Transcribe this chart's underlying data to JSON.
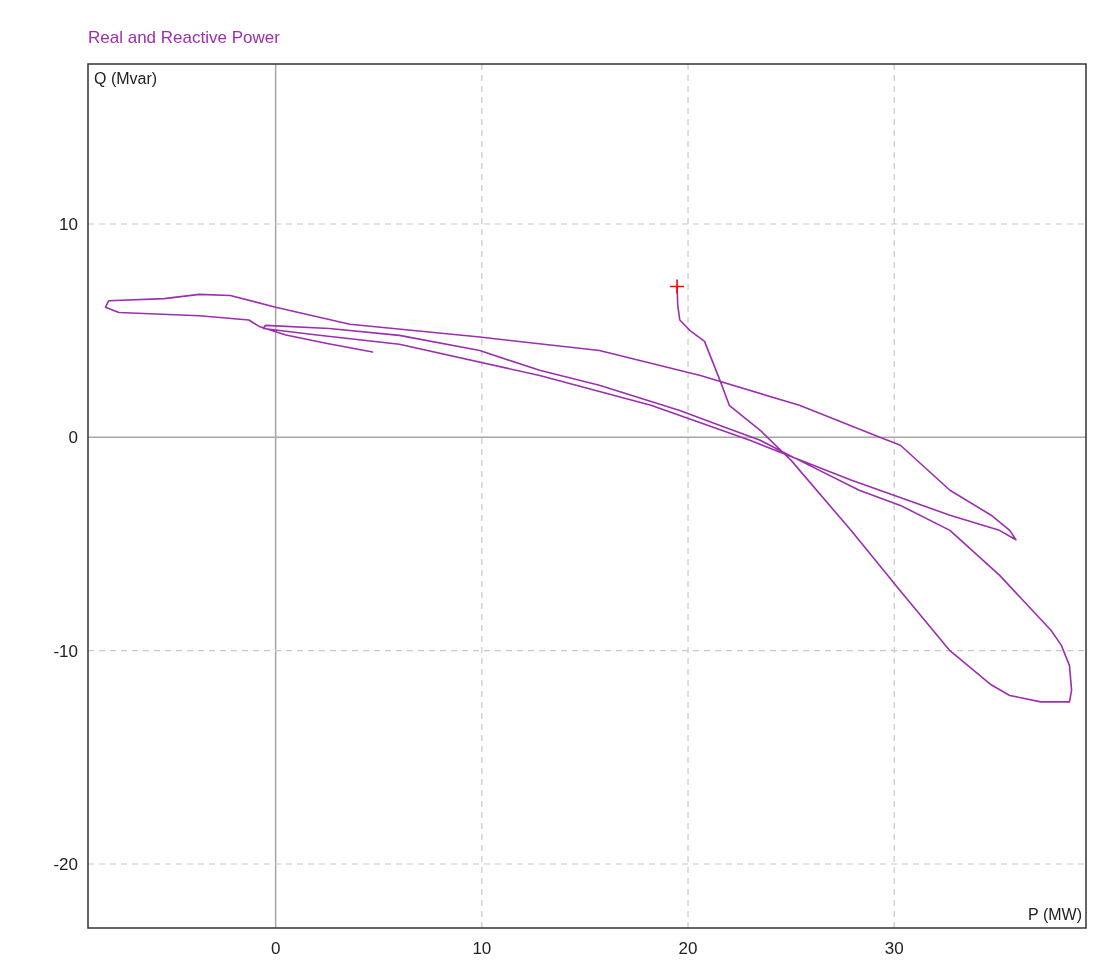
{
  "chart_data": {
    "type": "line",
    "title": "Real and Reactive Power",
    "xlabel": "P (MW)",
    "ylabel": "Q (Mvar)",
    "xlim": [
      -9.1,
      39.3
    ],
    "ylim": [
      -23,
      17.5
    ],
    "xticks": [
      0,
      10,
      20,
      30
    ],
    "yticks": [
      -20,
      -10,
      0,
      10
    ],
    "grid": true,
    "line_style": "solid",
    "series": [
      {
        "color": "#9b2fae",
        "x": [
          19.47,
          19.5,
          19.6,
          20.1,
          20.8,
          21.55,
          22.0,
          23.5,
          25.0,
          27.9,
          30.3,
          32.7,
          34.7,
          35.6,
          37.1,
          38.5,
          38.6,
          38.5,
          38.1,
          37.6,
          35.1,
          32.7,
          30.3,
          28.3,
          25.4,
          23.5,
          21.55,
          19.6,
          15.7,
          12.8,
          9.9,
          6.0,
          2.6,
          -0.5,
          -0.6,
          2.0,
          6.0,
          12.8,
          18.2,
          23.0,
          27.9,
          32.7,
          35.1,
          35.9,
          35.6,
          34.7,
          32.7,
          30.3,
          29.3,
          25.4,
          20.6,
          15.7,
          9.9,
          3.6,
          0.0,
          -2.2,
          -3.7,
          -5.4,
          -8.1,
          -8.25,
          -7.6,
          -3.7,
          -1.3,
          -0.8,
          0.5,
          2.5,
          4.7
        ],
        "values": [
          7.07,
          6.2,
          5.5,
          5.0,
          4.5,
          2.67,
          1.5,
          0.33,
          -1.08,
          -4.36,
          -7.2,
          -10.0,
          -11.6,
          -12.1,
          -12.4,
          -12.4,
          -11.85,
          -10.7,
          -9.74,
          -9.04,
          -6.46,
          -4.36,
          -3.19,
          -2.48,
          -1.08,
          -0.14,
          0.56,
          1.26,
          2.44,
          3.14,
          4.07,
          4.78,
          5.1,
          5.25,
          5.1,
          4.8,
          4.36,
          2.9,
          1.5,
          -0.14,
          -2.0,
          -3.65,
          -4.36,
          -4.8,
          -4.36,
          -3.65,
          -2.48,
          -0.37,
          0.0,
          1.5,
          2.9,
          4.07,
          4.7,
          5.3,
          6.1,
          6.65,
          6.7,
          6.5,
          6.4,
          6.1,
          5.85,
          5.7,
          5.5,
          5.2,
          4.8,
          4.4,
          4.0
        ]
      },
      {
        "type": "scatter",
        "marker": "cross",
        "color": "#ff0000",
        "x": [
          19.47
        ],
        "values": [
          7.07
        ]
      }
    ]
  }
}
